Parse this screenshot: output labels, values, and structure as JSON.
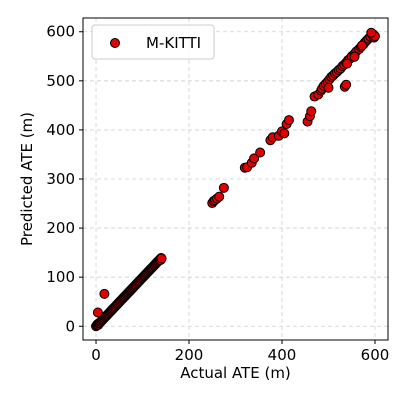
{
  "chart_data": {
    "type": "scatter",
    "xlabel": "Actual ATE (m)",
    "ylabel": "Predicted ATE (m)",
    "xlim": [
      -28,
      628
    ],
    "ylim": [
      -28,
      628
    ],
    "xticks": [
      0,
      200,
      400,
      600
    ],
    "yticks": [
      0,
      100,
      200,
      300,
      400,
      500,
      600
    ],
    "grid": true,
    "legend_position": "top-left",
    "marker_color": "#e00000",
    "marker_edge": "#000000",
    "series": [
      {
        "name": "M-KITTI",
        "points": [
          [
            0,
            0
          ],
          [
            2,
            2
          ],
          [
            3,
            4
          ],
          [
            5,
            3
          ],
          [
            6,
            6
          ],
          [
            8,
            7
          ],
          [
            10,
            9
          ],
          [
            12,
            11
          ],
          [
            14,
            13
          ],
          [
            16,
            15
          ],
          [
            18,
            17
          ],
          [
            20,
            19
          ],
          [
            22,
            21
          ],
          [
            24,
            23
          ],
          [
            26,
            25
          ],
          [
            28,
            27
          ],
          [
            30,
            29
          ],
          [
            32,
            31
          ],
          [
            34,
            33
          ],
          [
            36,
            35
          ],
          [
            38,
            37
          ],
          [
            40,
            39
          ],
          [
            42,
            41
          ],
          [
            44,
            43
          ],
          [
            46,
            45
          ],
          [
            48,
            47
          ],
          [
            50,
            49
          ],
          [
            52,
            51
          ],
          [
            54,
            53
          ],
          [
            56,
            55
          ],
          [
            58,
            57
          ],
          [
            60,
            59
          ],
          [
            62,
            61
          ],
          [
            64,
            63
          ],
          [
            66,
            65
          ],
          [
            68,
            67
          ],
          [
            70,
            69
          ],
          [
            72,
            71
          ],
          [
            74,
            73
          ],
          [
            76,
            75
          ],
          [
            78,
            77
          ],
          [
            80,
            79
          ],
          [
            82,
            81
          ],
          [
            84,
            83
          ],
          [
            86,
            85
          ],
          [
            88,
            87
          ],
          [
            90,
            89
          ],
          [
            92,
            91
          ],
          [
            94,
            93
          ],
          [
            96,
            95
          ],
          [
            98,
            97
          ],
          [
            100,
            99
          ],
          [
            102,
            101
          ],
          [
            104,
            103
          ],
          [
            106,
            105
          ],
          [
            108,
            107
          ],
          [
            110,
            109
          ],
          [
            112,
            111
          ],
          [
            114,
            113
          ],
          [
            116,
            115
          ],
          [
            118,
            117
          ],
          [
            120,
            119
          ],
          [
            122,
            121
          ],
          [
            124,
            123
          ],
          [
            126,
            125
          ],
          [
            128,
            127
          ],
          [
            130,
            129
          ],
          [
            132,
            131
          ],
          [
            134,
            133
          ],
          [
            136,
            135
          ],
          [
            138,
            137
          ],
          [
            140,
            139
          ],
          [
            139,
            135
          ],
          [
            141,
            138
          ],
          [
            4,
            28
          ],
          [
            18,
            66
          ],
          [
            250,
            251
          ],
          [
            253,
            255
          ],
          [
            256,
            257
          ],
          [
            260,
            260
          ],
          [
            265,
            264
          ],
          [
            275,
            282
          ],
          [
            320,
            323
          ],
          [
            325,
            324
          ],
          [
            335,
            333
          ],
          [
            340,
            342
          ],
          [
            353,
            354
          ],
          [
            375,
            379
          ],
          [
            380,
            385
          ],
          [
            393,
            388
          ],
          [
            400,
            397
          ],
          [
            405,
            393
          ],
          [
            410,
            412
          ],
          [
            415,
            420
          ],
          [
            455,
            417
          ],
          [
            460,
            428
          ],
          [
            463,
            438
          ],
          [
            470,
            468
          ],
          [
            478,
            472
          ],
          [
            484,
            480
          ],
          [
            486,
            484
          ],
          [
            490,
            490
          ],
          [
            494,
            494
          ],
          [
            498,
            498
          ],
          [
            502,
            503
          ],
          [
            506,
            508
          ],
          [
            510,
            511
          ],
          [
            514,
            515
          ],
          [
            518,
            518
          ],
          [
            522,
            522
          ],
          [
            500,
            486
          ],
          [
            526,
            525
          ],
          [
            530,
            530
          ],
          [
            534,
            533
          ],
          [
            538,
            537
          ],
          [
            542,
            542
          ],
          [
            546,
            545
          ],
          [
            550,
            550
          ],
          [
            535,
            488
          ],
          [
            538,
            492
          ],
          [
            540,
            535
          ],
          [
            556,
            555
          ],
          [
            560,
            560
          ],
          [
            566,
            565
          ],
          [
            570,
            569
          ],
          [
            575,
            574
          ],
          [
            578,
            578
          ],
          [
            582,
            582
          ],
          [
            586,
            586
          ],
          [
            590,
            590
          ],
          [
            594,
            594
          ],
          [
            596,
            595
          ],
          [
            598,
            588
          ],
          [
            600,
            591
          ],
          [
            556,
            549
          ],
          [
            572,
            572
          ],
          [
            592,
            598
          ]
        ]
      }
    ]
  }
}
